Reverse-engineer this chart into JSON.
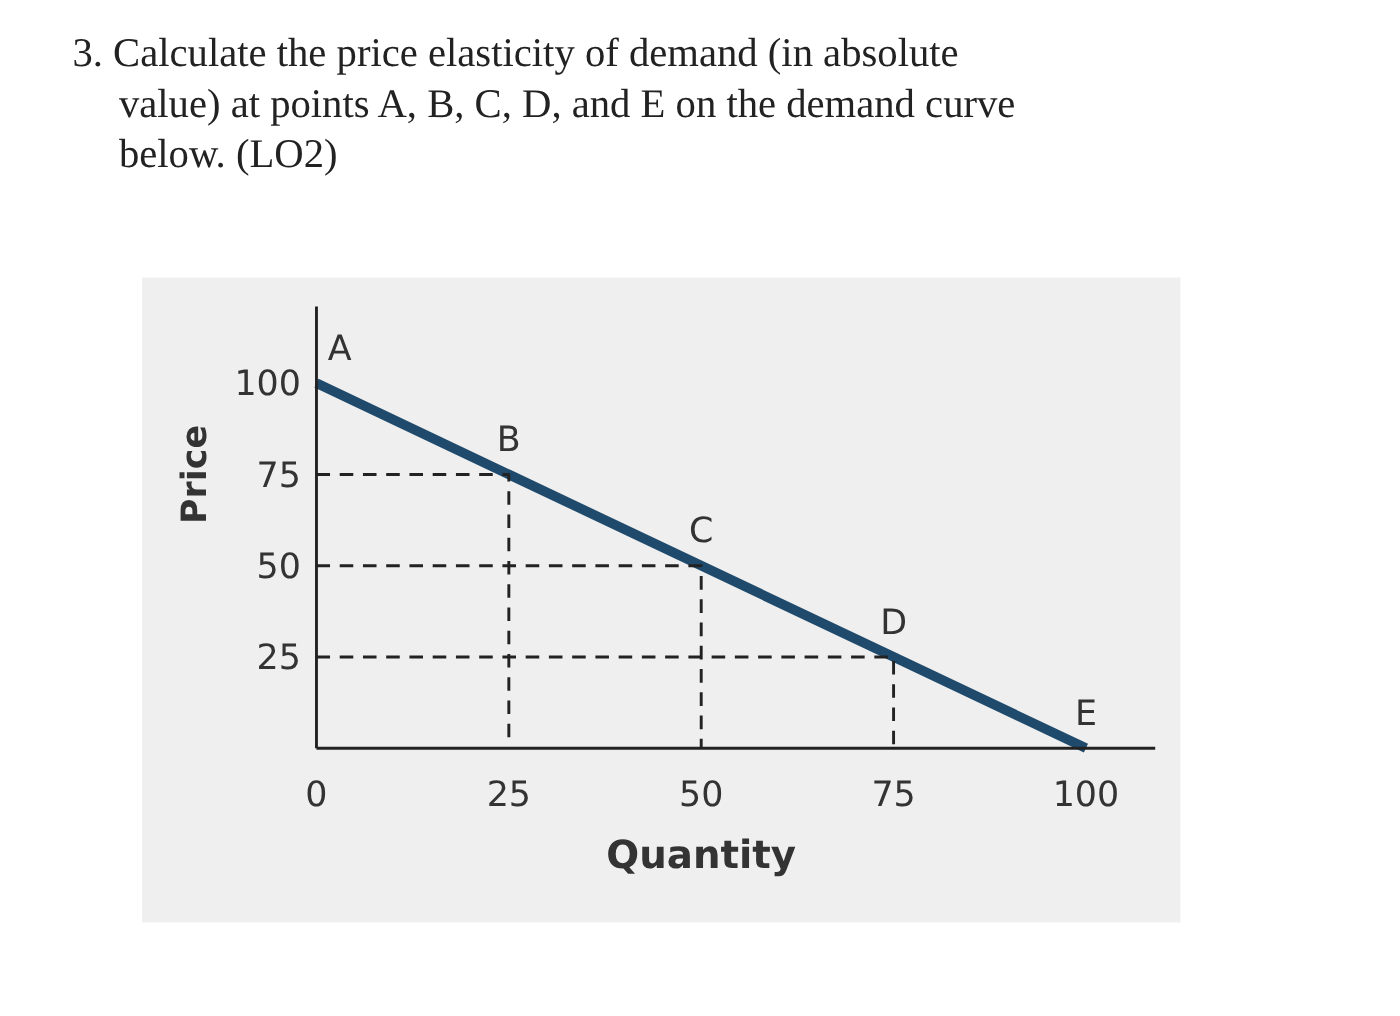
{
  "chart_data": {
    "type": "line",
    "title": "3. Calculate the price elasticity of demand (in absolute value) at points A, B, C, D, and E on the demand curve below. (LO2)",
    "xlabel": "Quantity",
    "ylabel": "Price",
    "xlim": [
      0,
      109
    ],
    "ylim": [
      0,
      121
    ],
    "xticks": [
      0,
      25,
      50,
      75,
      100
    ],
    "yticks": [
      25,
      50,
      75,
      100
    ],
    "grid": false,
    "marker": "none",
    "series": [
      {
        "color": "#1f4a6b",
        "x": [
          0,
          25,
          50,
          75,
          100
        ],
        "values": [
          100,
          75,
          50,
          25,
          0
        ]
      },
      {
        "color": "#222222",
        "line_style": "dashed",
        "x": [
          0,
          25,
          25
        ],
        "values": [
          75,
          75,
          0
        ]
      },
      {
        "color": "#222222",
        "line_style": "dashed",
        "x": [
          0,
          50,
          50
        ],
        "values": [
          50,
          50,
          0
        ]
      },
      {
        "color": "#222222",
        "line_style": "dashed",
        "x": [
          0,
          75,
          75
        ],
        "values": [
          25,
          25,
          0
        ]
      }
    ],
    "annotations": [
      {
        "text": "A",
        "x": 0,
        "y": 100
      },
      {
        "text": "B",
        "x": 25,
        "y": 75
      },
      {
        "text": "C",
        "x": 50,
        "y": 50
      },
      {
        "text": "D",
        "x": 75,
        "y": 25
      },
      {
        "text": "E",
        "x": 100,
        "y": 0
      }
    ]
  }
}
